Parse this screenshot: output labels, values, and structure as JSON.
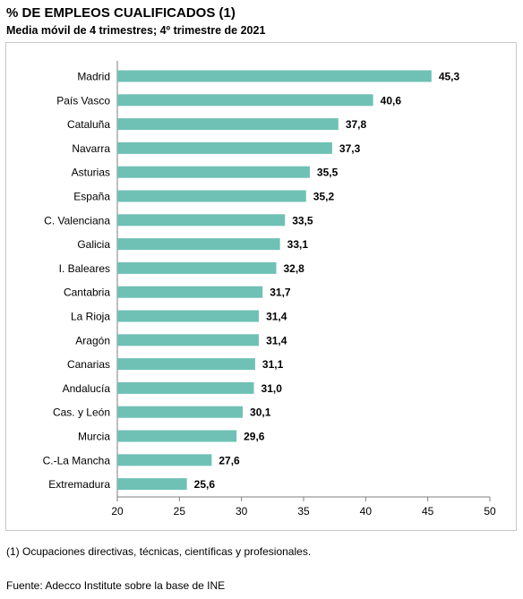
{
  "header": {
    "title": "% DE EMPLEOS CUALIFICADOS (1)",
    "subtitle": "Media móvil de 4 trimestres; 4º trimestre de 2021"
  },
  "footer": {
    "footnote": "(1) Ocupaciones directivas, técnicas, científicas y profesionales.",
    "source": "Fuente: Adecco Institute sobre la base de INE"
  },
  "chart_data": {
    "type": "bar",
    "orientation": "horizontal",
    "title": "% DE EMPLEOS CUALIFICADOS (1)",
    "subtitle": "Media móvil de 4 trimestres; 4º trimestre de 2021",
    "categories": [
      "Madrid",
      "País Vasco",
      "Cataluña",
      "Navarra",
      "Asturias",
      "España",
      "C. Valenciana",
      "Galicia",
      "I. Baleares",
      "Cantabria",
      "La Rioja",
      "Aragón",
      "Canarias",
      "Andalucía",
      "Cas. y León",
      "Murcia",
      "C.-La Mancha",
      "Extremadura"
    ],
    "values": [
      45.3,
      40.6,
      37.8,
      37.3,
      35.5,
      35.2,
      33.5,
      33.1,
      32.8,
      31.7,
      31.4,
      31.4,
      31.1,
      31.0,
      30.1,
      29.6,
      27.6,
      25.6
    ],
    "value_labels": [
      "45,3",
      "40,6",
      "37,8",
      "37,3",
      "35,5",
      "35,2",
      "33,5",
      "33,1",
      "32,8",
      "31,7",
      "31,4",
      "31,4",
      "31,1",
      "31,0",
      "30,1",
      "29,6",
      "27,6",
      "25,6"
    ],
    "xlim": [
      20,
      50
    ],
    "xticks": [
      20,
      25,
      30,
      35,
      40,
      45,
      50
    ],
    "xlabel": "",
    "ylabel": "",
    "grid": false,
    "legend": "none",
    "bar_color": "#6fc1b5"
  }
}
